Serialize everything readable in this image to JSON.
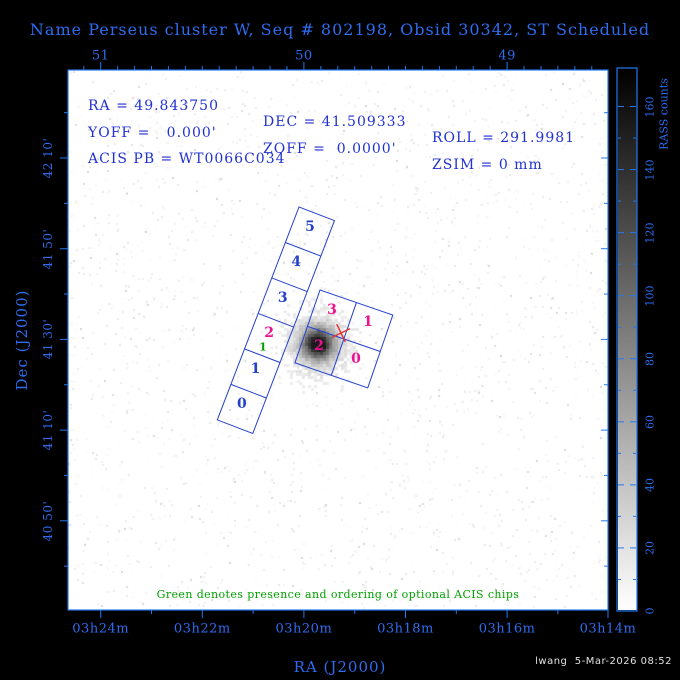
{
  "title": "Name Perseus cluster W, Seq # 802198, Obsid 30342, ST Scheduled",
  "info": {
    "ra": "RA = 49.843750",
    "dec": "DEC = 41.509333",
    "roll": "ROLL = 291.9981",
    "yoff": "YOFF =   0.000'",
    "zoff": "ZOFF =  0.0000'",
    "zsim": "ZSIM = 0 mm",
    "acis_pb": "ACIS PB = WT0066C034"
  },
  "axes": {
    "top": {
      "tick_labels": [
        "51",
        "50",
        "49"
      ]
    },
    "bottom": {
      "tick_labels": [
        "03h24m",
        "03h22m",
        "03h20m",
        "03h18m",
        "03h16m",
        "03h14m"
      ],
      "label": "RA (J2000)"
    },
    "left": {
      "tick_labels": [
        "42 10'",
        "41 50'",
        "41 30'",
        "41 10'",
        "40 50'"
      ],
      "label": "Dec (J2000)"
    }
  },
  "colorbar": {
    "label": "RASS counts",
    "tick_labels": [
      "0",
      "20",
      "40",
      "60",
      "80",
      "100",
      "120",
      "140",
      "160"
    ]
  },
  "overlay": {
    "acis_s_chip_labels": [
      {
        "text": "5",
        "color": "chip_blue"
      },
      {
        "text": "4",
        "color": "chip_blue"
      },
      {
        "text": "3",
        "color": "chip_blue"
      },
      {
        "text": "2",
        "color": "magenta"
      },
      {
        "text": "1",
        "color": "chip_blue"
      },
      {
        "text": "0",
        "color": "chip_blue"
      }
    ],
    "acis_s_optional_chip": {
      "text": "1",
      "color": "green"
    },
    "acis_i_chip_labels": [
      {
        "text": "3",
        "color": "magenta"
      },
      {
        "text": "1",
        "color": "magenta"
      },
      {
        "text": "2",
        "color": "magenta"
      },
      {
        "text": "0",
        "color": "magenta"
      }
    ]
  },
  "note": "Green denotes presence and ordering of optional ACIS chips",
  "footer": "lwang  5-Mar-2026 08:52",
  "colors": {
    "accent_blue": "#2e6cf0",
    "frame_blue": "#2277ee",
    "info_blue": "#2232d0",
    "chip_blue": "#2440cc",
    "magenta": "#ee1090",
    "green": "#00a000",
    "red": "#e83030",
    "footer_gray": "#e0e0e0"
  },
  "chart_data": {
    "type": "heatmap",
    "title": "Name Perseus cluster W, Seq # 802198, Obsid 30342, ST Scheduled",
    "xlabel": "RA (J2000)",
    "ylabel": "Dec (J2000)",
    "x_ticks_bottom": [
      "03h24m",
      "03h22m",
      "03h20m",
      "03h18m",
      "03h16m",
      "03h14m"
    ],
    "x_ticks_top_degrees": [
      51,
      50,
      49
    ],
    "y_ticks": [
      "42 10'",
      "41 50'",
      "41 30'",
      "41 10'",
      "40 50'"
    ],
    "colorbar": {
      "label": "RASS counts",
      "min": 0,
      "max": 160,
      "major_step": 20,
      "minor_step": 10
    },
    "pointing": {
      "ra_deg": 49.84375,
      "dec_deg": 41.509333,
      "roll_deg": 291.9981,
      "yoff_arcmin": 0.0,
      "zoff_arcmin": 0.0,
      "zsim_mm": 0,
      "acis_pb": "WT0066C034"
    },
    "overlays": [
      {
        "name": "ACIS-S array",
        "chip_labels": [
          "5",
          "4",
          "3",
          "2",
          "1",
          "0"
        ],
        "optional_chip_order": "1 (on S2, green)"
      },
      {
        "name": "ACIS-I array",
        "chip_labels": [
          "3",
          "1",
          "2",
          "0"
        ]
      },
      {
        "name": "aim-point",
        "marker": "red X at RA 49.843750, Dec 41.509333"
      }
    ],
    "image_content": "ROSAT All-Sky Survey counts map of Perseus cluster; bright extended peak under ACIS-I chip 2; sparse faint background speckle",
    "legend_position": "none",
    "grid": false
  }
}
